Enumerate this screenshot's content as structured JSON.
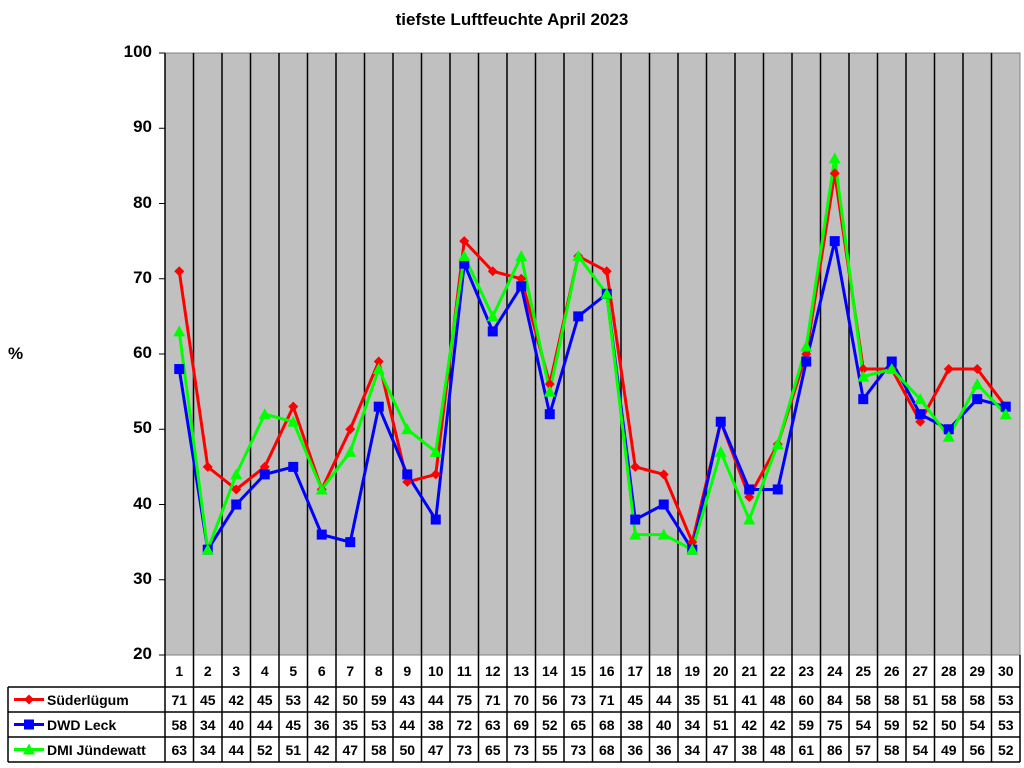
{
  "chart_data": {
    "type": "line",
    "title": "tiefste Luftfeuchte April 2023",
    "xlabel": "",
    "ylabel": "%",
    "ylim": [
      20,
      100
    ],
    "yticks": [
      20,
      30,
      40,
      50,
      60,
      70,
      80,
      90,
      100
    ],
    "categories": [
      "1",
      "2",
      "3",
      "4",
      "5",
      "6",
      "7",
      "8",
      "9",
      "10",
      "11",
      "12",
      "13",
      "14",
      "15",
      "16",
      "17",
      "18",
      "19",
      "20",
      "21",
      "22",
      "23",
      "24",
      "25",
      "26",
      "27",
      "28",
      "29",
      "30"
    ],
    "grid": "vertical",
    "legend_position": "data-table-bottom",
    "series": [
      {
        "name": "Süderlügum",
        "color": "#ff0000",
        "marker": "diamond",
        "values": [
          71,
          45,
          42,
          45,
          53,
          42,
          50,
          59,
          43,
          44,
          75,
          71,
          70,
          56,
          73,
          71,
          45,
          44,
          35,
          51,
          41,
          48,
          60,
          84,
          58,
          58,
          51,
          58,
          58,
          53
        ]
      },
      {
        "name": "DWD Leck",
        "color": "#0000ff",
        "marker": "square",
        "values": [
          58,
          34,
          40,
          44,
          45,
          36,
          35,
          53,
          44,
          38,
          72,
          63,
          69,
          52,
          65,
          68,
          38,
          40,
          34,
          51,
          42,
          42,
          59,
          75,
          54,
          59,
          52,
          50,
          54,
          53
        ]
      },
      {
        "name": "DMI Jündewatt",
        "color": "#00ff00",
        "marker": "triangle",
        "values": [
          63,
          34,
          44,
          52,
          51,
          42,
          47,
          58,
          50,
          47,
          73,
          65,
          73,
          55,
          73,
          68,
          36,
          36,
          34,
          47,
          38,
          48,
          61,
          86,
          57,
          58,
          54,
          49,
          56,
          52
        ]
      }
    ]
  }
}
